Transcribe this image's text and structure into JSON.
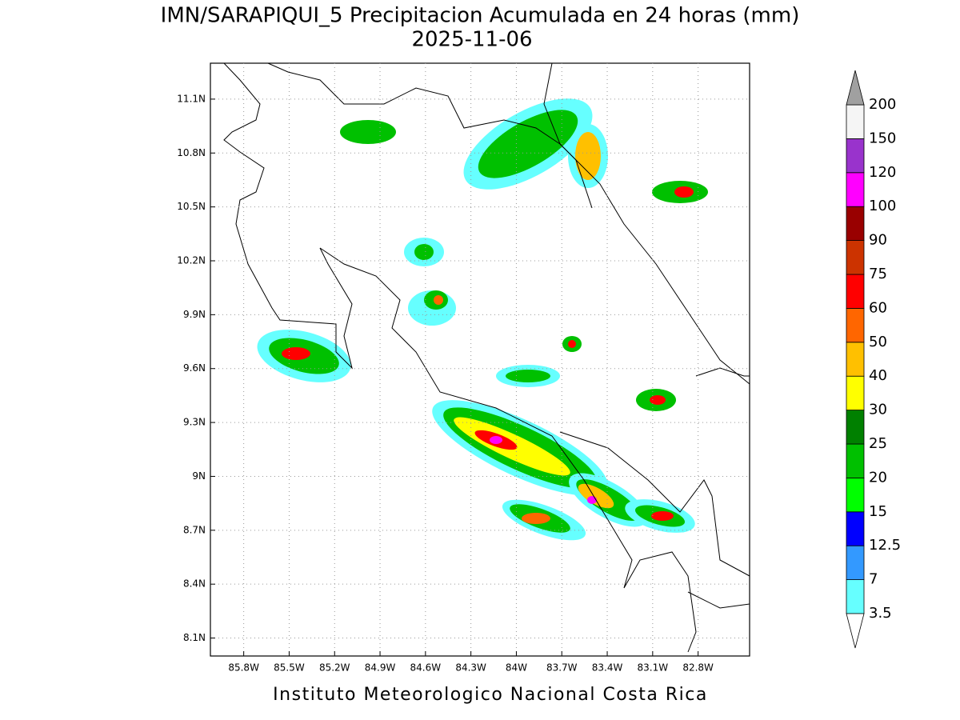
{
  "map": {
    "title": "IMN/SARAPIQUI_5 Precipitacion Acumulada en 24 horas (mm)",
    "subtitle": "2025-11-06",
    "footer": "Instituto Meteorologico Nacional Costa Rica",
    "xlim": [
      -86.02,
      -82.46
    ],
    "ylim": [
      8.0,
      11.3
    ],
    "xticks": [
      {
        "value": -85.8,
        "label": "85.8W"
      },
      {
        "value": -85.5,
        "label": "85.5W"
      },
      {
        "value": -85.2,
        "label": "85.2W"
      },
      {
        "value": -84.9,
        "label": "84.9W"
      },
      {
        "value": -84.6,
        "label": "84.6W"
      },
      {
        "value": -84.3,
        "label": "84.3W"
      },
      {
        "value": -84.0,
        "label": "84W"
      },
      {
        "value": -83.7,
        "label": "83.7W"
      },
      {
        "value": -83.4,
        "label": "83.4W"
      },
      {
        "value": -83.1,
        "label": "83.1W"
      },
      {
        "value": -82.8,
        "label": "82.8W"
      }
    ],
    "yticks": [
      {
        "value": 8.1,
        "label": "8.1N"
      },
      {
        "value": 8.4,
        "label": "8.4N"
      },
      {
        "value": 8.7,
        "label": "8.7N"
      },
      {
        "value": 9.0,
        "label": "9N"
      },
      {
        "value": 9.3,
        "label": "9.3N"
      },
      {
        "value": 9.6,
        "label": "9.6N"
      },
      {
        "value": 9.9,
        "label": "9.9N"
      },
      {
        "value": 10.2,
        "label": "10.2N"
      },
      {
        "value": 10.5,
        "label": "10.5N"
      },
      {
        "value": 10.8,
        "label": "10.8N"
      },
      {
        "value": 11.1,
        "label": "11.1N"
      }
    ],
    "grid": true,
    "colorbar": {
      "levels": [
        3.5,
        7,
        12.5,
        15,
        20,
        25,
        30,
        40,
        50,
        60,
        75,
        90,
        100,
        120,
        150,
        200
      ],
      "colors": [
        "#66ffff",
        "#3399ff",
        "#0000ff",
        "#00ff00",
        "#00c000",
        "#008000",
        "#ffff00",
        "#ffc000",
        "#ff6600",
        "#ff0000",
        "#cc3300",
        "#990000",
        "#ff00ff",
        "#9933cc",
        "#f5f5f5"
      ],
      "over_color": "#a0a0a0",
      "under_color": "#ffffff"
    }
  }
}
